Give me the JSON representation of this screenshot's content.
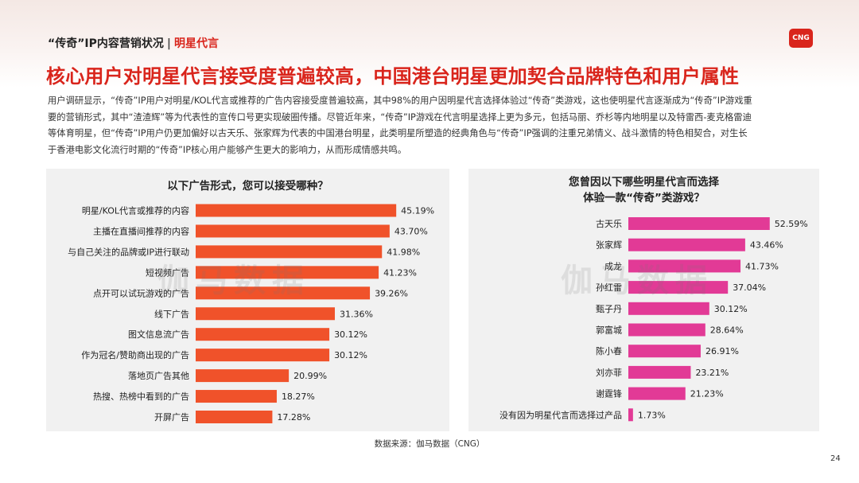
{
  "header": {
    "section": "“传奇”IP内容营销状况",
    "separator": "|",
    "subsection": "明星代言"
  },
  "logo_text": "CNG",
  "title": "核心用户对明星代言接受度普遍较高，中国港台明星更加契合品牌特色和用户属性",
  "paragraph": [
    "用户调研显示，“传奇”IP用户对明星/KOL代言或推荐的广告内容接受度普遍较高，其中98%的用户因明星代言选择体验过“传奇”类游戏，这也使明星代言逐渐成为“传奇”IP游戏重",
    "要的营销形式，其中“渣渣辉”等为代表性的宣传口号更实现破圈传播。尽管近年来，“传奇”IP游戏在代言明星选择上更为多元，包括马丽、乔杉等内地明星以及特雷西-麦克格雷迪",
    "等体育明星，但“传奇”IP用户仍更加偏好以古天乐、张家辉为代表的中国港台明星，此类明星所塑造的经典角色与“传奇”IP强调的注重兄弟情义、战斗激情的特色相契合，对生长",
    "于香港电影文化流行时期的“传奇”IP核心用户能够产生更大的影响力，从而形成情感共鸣。"
  ],
  "watermark": "伽马数据",
  "chart_data": [
    {
      "type": "bar",
      "orientation": "horizontal",
      "title": "以下广告形式，您可以接受哪种？",
      "color": "#f0522a",
      "categories": [
        "明星/KOL代言或推荐的内容",
        "主播在直播间推荐的内容",
        "与自己关注的品牌或IP进行联动",
        "短视频广告",
        "点开可以试玩游戏的广告",
        "线下广告",
        "图文信息流广告",
        "作为冠名/赞助商出现的广告",
        "落地页广告其他",
        "热搜、热榜中看到的广告",
        "开屏广告"
      ],
      "values": [
        45.19,
        43.7,
        41.98,
        41.23,
        39.26,
        31.36,
        30.12,
        30.12,
        20.99,
        18.27,
        17.28
      ],
      "labels": [
        "45.19%",
        "43.70%",
        "41.98%",
        "41.23%",
        "39.26%",
        "31.36%",
        "30.12%",
        "30.12%",
        "20.99%",
        "18.27%",
        "17.28%"
      ],
      "unit": "%"
    },
    {
      "type": "bar",
      "orientation": "horizontal",
      "title": [
        "您曾因以下哪些明星代言而选择",
        "体验一款“传奇”类游戏？"
      ],
      "color": "#e23a96",
      "categories": [
        "古天乐",
        "张家辉",
        "成龙",
        "孙红雷",
        "甄子丹",
        "郭富城",
        "陈小春",
        "刘亦菲",
        "谢霆锋",
        "没有因为明星代言而选择过产品"
      ],
      "values": [
        52.59,
        43.46,
        41.73,
        37.04,
        30.12,
        28.64,
        26.91,
        23.21,
        21.23,
        1.73
      ],
      "labels": [
        "52.59%",
        "43.46%",
        "41.73%",
        "37.04%",
        "30.12%",
        "28.64%",
        "26.91%",
        "23.21%",
        "21.23%",
        "1.73%"
      ],
      "unit": "%"
    }
  ],
  "source": "数据来源：伽马数据（CNG）",
  "page_number": "24"
}
